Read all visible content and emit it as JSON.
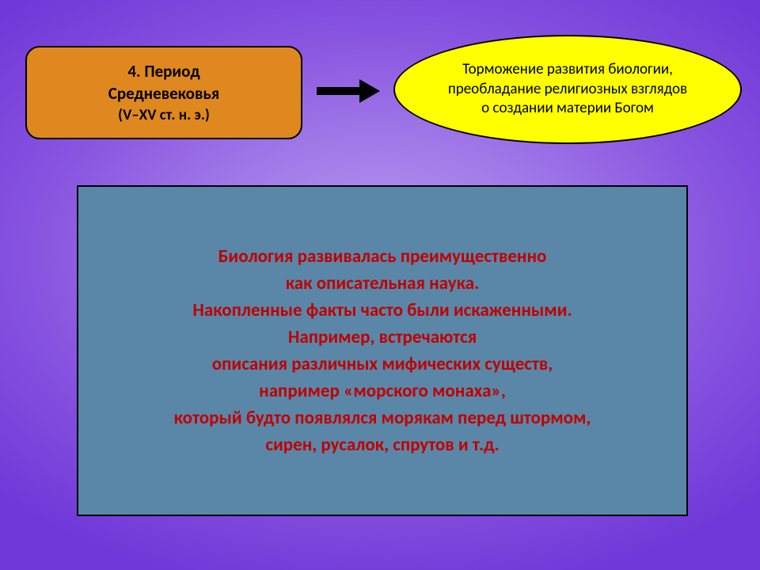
{
  "background": {
    "gradient_inner": "#b89cf0",
    "gradient_outer": "#7038d8"
  },
  "orange_box": {
    "bg_color": "#e08820",
    "border_color": "#000000",
    "title_line1": "4. Период",
    "title_line2": "Средневековья",
    "subtitle": "(V–XV ст. н. э.)",
    "title_fontsize": 21,
    "subtitle_fontsize": 19,
    "text_color": "#000000"
  },
  "arrow": {
    "color": "#000000"
  },
  "ellipse": {
    "bg_color": "#ffff00",
    "border_color": "#000000",
    "line1": "Торможение развития биологии,",
    "line2": "преобладание религиозных взглядов",
    "line3": "о создании материи Богом",
    "fontsize": 19,
    "text_color": "#000000"
  },
  "blue_box": {
    "bg_color": "#5a87a8",
    "border_color": "#000000",
    "text_color": "#c00000",
    "fontsize": 23,
    "lines": [
      "Биология развивалась преимущественно",
      "как описательная наука.",
      "Накопленные факты часто были искаженными.",
      "Например, встречаются",
      "описания различных мифических существ,",
      "например «морского монаха»,",
      "который будто появлялся морякам перед штормом,",
      "сирен, русалок, спрутов и т.д."
    ]
  }
}
